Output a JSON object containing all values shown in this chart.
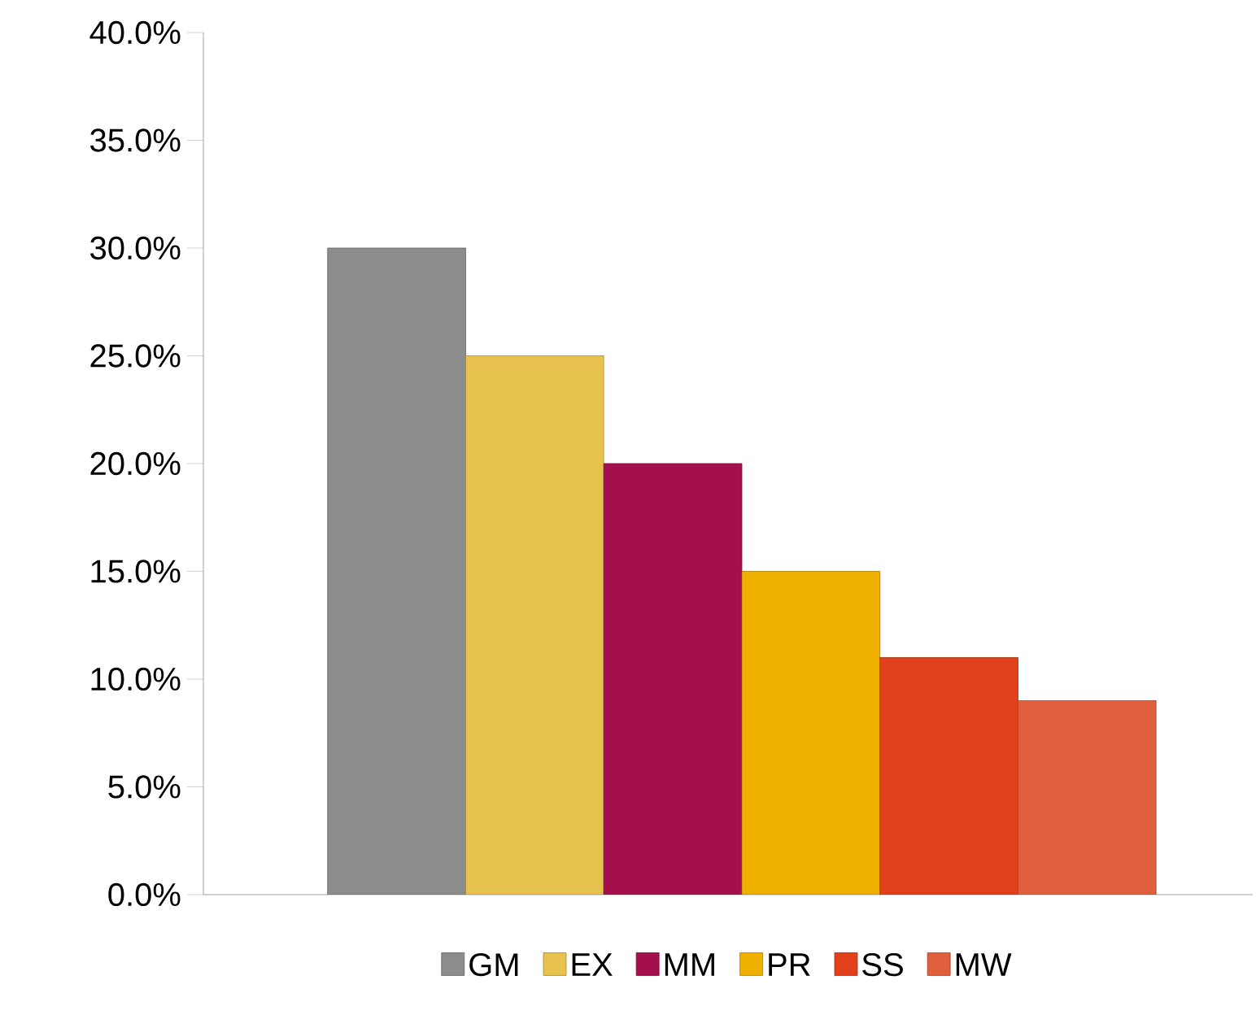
{
  "chart_data": {
    "type": "bar",
    "categories": [
      null
    ],
    "series": [
      {
        "name": "GM",
        "color": "#8c8c8c",
        "values": [
          30
        ]
      },
      {
        "name": "EX",
        "color": "#e8c24e",
        "values": [
          25
        ]
      },
      {
        "name": "MM",
        "color": "#a3104c",
        "values": [
          20
        ]
      },
      {
        "name": "PR",
        "color": "#f0b000",
        "values": [
          15
        ]
      },
      {
        "name": "SS",
        "color": "#e2401a",
        "values": [
          11
        ]
      },
      {
        "name": "MW",
        "color": "#e0603e",
        "values": [
          9
        ]
      }
    ],
    "ylim": [
      0,
      40
    ],
    "yticks": [
      {
        "value": 0,
        "label": "0.0%"
      },
      {
        "value": 5,
        "label": "5.0%"
      },
      {
        "value": 10,
        "label": "10.0%"
      },
      {
        "value": 15,
        "label": "15.0%"
      },
      {
        "value": 20,
        "label": "20.0%"
      },
      {
        "value": 25,
        "label": "25.0%"
      },
      {
        "value": 30,
        "label": "30.0%"
      },
      {
        "value": 35,
        "label": "35.0%"
      },
      {
        "value": 40,
        "label": "40.0%"
      }
    ],
    "legend": "bottom"
  }
}
